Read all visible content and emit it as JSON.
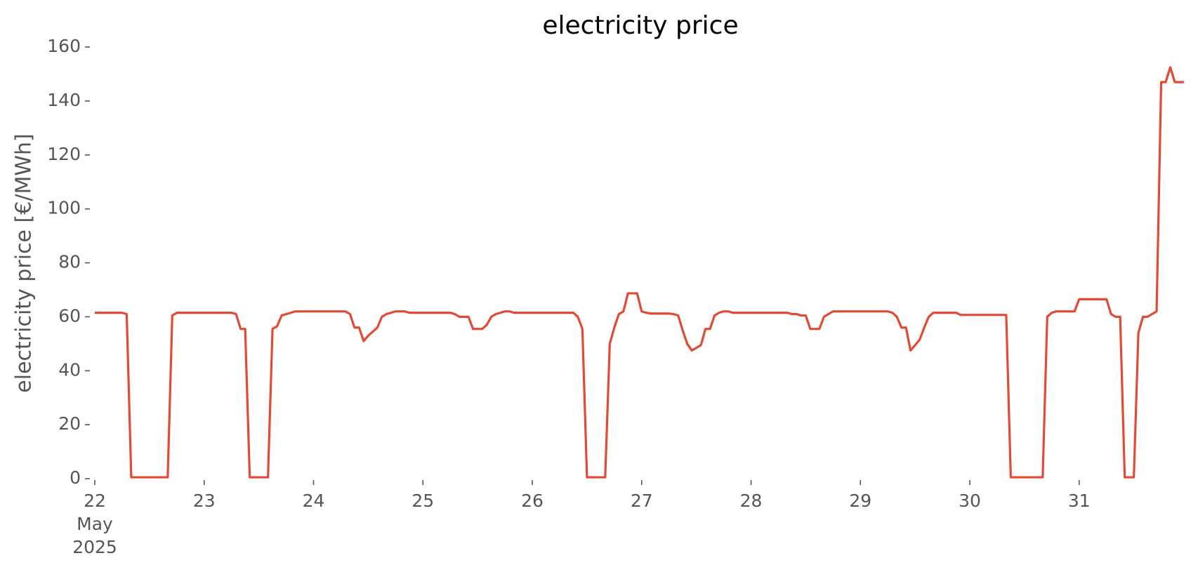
{
  "chart_data": {
    "type": "line",
    "title": "electricity price",
    "y_label": "electricity price [€/MWh]",
    "ylim": [
      0,
      160
    ],
    "yticks": [
      0,
      20,
      40,
      60,
      80,
      100,
      120,
      140,
      160
    ],
    "xlim": [
      "2025-05-22T00:00",
      "2025-05-31T23:00"
    ],
    "xticks": [
      {
        "value": "2025-05-22T00:00",
        "label": "22\nMay\n2025"
      },
      {
        "value": "2025-05-23T00:00",
        "label": "23"
      },
      {
        "value": "2025-05-24T00:00",
        "label": "24"
      },
      {
        "value": "2025-05-25T00:00",
        "label": "25"
      },
      {
        "value": "2025-05-26T00:00",
        "label": "26"
      },
      {
        "value": "2025-05-27T00:00",
        "label": "27"
      },
      {
        "value": "2025-05-28T00:00",
        "label": "28"
      },
      {
        "value": "2025-05-29T00:00",
        "label": "29"
      },
      {
        "value": "2025-05-30T00:00",
        "label": "30"
      },
      {
        "value": "2025-05-31T00:00",
        "label": "31"
      }
    ],
    "grid": false,
    "x": [
      "2025-05-22T00:00",
      "2025-05-22T01:00",
      "2025-05-22T02:00",
      "2025-05-22T03:00",
      "2025-05-22T04:00",
      "2025-05-22T05:00",
      "2025-05-22T06:00",
      "2025-05-22T07:00",
      "2025-05-22T08:00",
      "2025-05-22T09:00",
      "2025-05-22T10:00",
      "2025-05-22T11:00",
      "2025-05-22T12:00",
      "2025-05-22T13:00",
      "2025-05-22T14:00",
      "2025-05-22T15:00",
      "2025-05-22T16:00",
      "2025-05-22T17:00",
      "2025-05-22T18:00",
      "2025-05-22T19:00",
      "2025-05-22T20:00",
      "2025-05-22T21:00",
      "2025-05-22T22:00",
      "2025-05-22T23:00",
      "2025-05-23T00:00",
      "2025-05-23T01:00",
      "2025-05-23T02:00",
      "2025-05-23T03:00",
      "2025-05-23T04:00",
      "2025-05-23T05:00",
      "2025-05-23T06:00",
      "2025-05-23T07:00",
      "2025-05-23T08:00",
      "2025-05-23T09:00",
      "2025-05-23T10:00",
      "2025-05-23T11:00",
      "2025-05-23T12:00",
      "2025-05-23T13:00",
      "2025-05-23T14:00",
      "2025-05-23T15:00",
      "2025-05-23T16:00",
      "2025-05-23T17:00",
      "2025-05-23T18:00",
      "2025-05-23T19:00",
      "2025-05-23T20:00",
      "2025-05-23T21:00",
      "2025-05-23T22:00",
      "2025-05-23T23:00",
      "2025-05-24T00:00",
      "2025-05-24T01:00",
      "2025-05-24T02:00",
      "2025-05-24T03:00",
      "2025-05-24T04:00",
      "2025-05-24T05:00",
      "2025-05-24T06:00",
      "2025-05-24T07:00",
      "2025-05-24T08:00",
      "2025-05-24T09:00",
      "2025-05-24T10:00",
      "2025-05-24T11:00",
      "2025-05-24T12:00",
      "2025-05-24T13:00",
      "2025-05-24T14:00",
      "2025-05-24T15:00",
      "2025-05-24T16:00",
      "2025-05-24T17:00",
      "2025-05-24T18:00",
      "2025-05-24T19:00",
      "2025-05-24T20:00",
      "2025-05-24T21:00",
      "2025-05-24T22:00",
      "2025-05-24T23:00",
      "2025-05-25T00:00",
      "2025-05-25T01:00",
      "2025-05-25T02:00",
      "2025-05-25T03:00",
      "2025-05-25T04:00",
      "2025-05-25T05:00",
      "2025-05-25T06:00",
      "2025-05-25T07:00",
      "2025-05-25T08:00",
      "2025-05-25T09:00",
      "2025-05-25T10:00",
      "2025-05-25T11:00",
      "2025-05-25T12:00",
      "2025-05-25T13:00",
      "2025-05-25T14:00",
      "2025-05-25T15:00",
      "2025-05-25T16:00",
      "2025-05-25T17:00",
      "2025-05-25T18:00",
      "2025-05-25T19:00",
      "2025-05-25T20:00",
      "2025-05-25T21:00",
      "2025-05-25T22:00",
      "2025-05-25T23:00",
      "2025-05-26T00:00",
      "2025-05-26T01:00",
      "2025-05-26T02:00",
      "2025-05-26T03:00",
      "2025-05-26T04:00",
      "2025-05-26T05:00",
      "2025-05-26T06:00",
      "2025-05-26T07:00",
      "2025-05-26T08:00",
      "2025-05-26T09:00",
      "2025-05-26T10:00",
      "2025-05-26T11:00",
      "2025-05-26T12:00",
      "2025-05-26T13:00",
      "2025-05-26T14:00",
      "2025-05-26T15:00",
      "2025-05-26T16:00",
      "2025-05-26T17:00",
      "2025-05-26T18:00",
      "2025-05-26T19:00",
      "2025-05-26T20:00",
      "2025-05-26T21:00",
      "2025-05-26T22:00",
      "2025-05-26T23:00",
      "2025-05-27T00:00",
      "2025-05-27T01:00",
      "2025-05-27T02:00",
      "2025-05-27T03:00",
      "2025-05-27T04:00",
      "2025-05-27T05:00",
      "2025-05-27T06:00",
      "2025-05-27T07:00",
      "2025-05-27T08:00",
      "2025-05-27T09:00",
      "2025-05-27T10:00",
      "2025-05-27T11:00",
      "2025-05-27T12:00",
      "2025-05-27T13:00",
      "2025-05-27T14:00",
      "2025-05-27T15:00",
      "2025-05-27T16:00",
      "2025-05-27T17:00",
      "2025-05-27T18:00",
      "2025-05-27T19:00",
      "2025-05-27T20:00",
      "2025-05-27T21:00",
      "2025-05-27T22:00",
      "2025-05-27T23:00",
      "2025-05-28T00:00",
      "2025-05-28T01:00",
      "2025-05-28T02:00",
      "2025-05-28T03:00",
      "2025-05-28T04:00",
      "2025-05-28T05:00",
      "2025-05-28T06:00",
      "2025-05-28T07:00",
      "2025-05-28T08:00",
      "2025-05-28T09:00",
      "2025-05-28T10:00",
      "2025-05-28T11:00",
      "2025-05-28T12:00",
      "2025-05-28T13:00",
      "2025-05-28T14:00",
      "2025-05-28T15:00",
      "2025-05-28T16:00",
      "2025-05-28T17:00",
      "2025-05-28T18:00",
      "2025-05-28T19:00",
      "2025-05-28T20:00",
      "2025-05-28T21:00",
      "2025-05-28T22:00",
      "2025-05-28T23:00",
      "2025-05-29T00:00",
      "2025-05-29T01:00",
      "2025-05-29T02:00",
      "2025-05-29T03:00",
      "2025-05-29T04:00",
      "2025-05-29T05:00",
      "2025-05-29T06:00",
      "2025-05-29T07:00",
      "2025-05-29T08:00",
      "2025-05-29T09:00",
      "2025-05-29T10:00",
      "2025-05-29T11:00",
      "2025-05-29T12:00",
      "2025-05-29T13:00",
      "2025-05-29T14:00",
      "2025-05-29T15:00",
      "2025-05-29T16:00",
      "2025-05-29T17:00",
      "2025-05-29T18:00",
      "2025-05-29T19:00",
      "2025-05-29T20:00",
      "2025-05-29T21:00",
      "2025-05-29T22:00",
      "2025-05-29T23:00",
      "2025-05-30T00:00",
      "2025-05-30T01:00",
      "2025-05-30T02:00",
      "2025-05-30T03:00",
      "2025-05-30T04:00",
      "2025-05-30T05:00",
      "2025-05-30T06:00",
      "2025-05-30T07:00",
      "2025-05-30T08:00",
      "2025-05-30T09:00",
      "2025-05-30T10:00",
      "2025-05-30T11:00",
      "2025-05-30T12:00",
      "2025-05-30T13:00",
      "2025-05-30T14:00",
      "2025-05-30T15:00",
      "2025-05-30T16:00",
      "2025-05-30T17:00",
      "2025-05-30T18:00",
      "2025-05-30T19:00",
      "2025-05-30T20:00",
      "2025-05-30T21:00",
      "2025-05-30T22:00",
      "2025-05-30T23:00",
      "2025-05-31T00:00",
      "2025-05-31T01:00",
      "2025-05-31T02:00",
      "2025-05-31T03:00",
      "2025-05-31T04:00",
      "2025-05-31T05:00",
      "2025-05-31T06:00",
      "2025-05-31T07:00",
      "2025-05-31T08:00",
      "2025-05-31T09:00",
      "2025-05-31T10:00",
      "2025-05-31T11:00",
      "2025-05-31T12:00",
      "2025-05-31T13:00",
      "2025-05-31T14:00",
      "2025-05-31T15:00",
      "2025-05-31T16:00",
      "2025-05-31T17:00",
      "2025-05-31T18:00",
      "2025-05-31T19:00",
      "2025-05-31T20:00",
      "2025-05-31T21:00",
      "2025-05-31T22:00",
      "2025-05-31T23:00"
    ],
    "series": [
      {
        "name": "electricity price",
        "color": "#e24a33",
        "values": [
          61.5,
          61.5,
          61.5,
          61.5,
          61.5,
          61.5,
          61.5,
          61,
          0.5,
          0.5,
          0.5,
          0.5,
          0.5,
          0.5,
          0.5,
          0.5,
          0.5,
          60.5,
          61.5,
          61.5,
          61.5,
          61.5,
          61.5,
          61.5,
          61.5,
          61.5,
          61.5,
          61.5,
          61.5,
          61.5,
          61.5,
          61,
          55.5,
          55.5,
          0.5,
          0.5,
          0.5,
          0.5,
          0.5,
          55.5,
          56.5,
          60.5,
          61,
          61.5,
          62,
          62,
          62,
          62,
          62,
          62,
          62,
          62,
          62,
          62,
          62,
          62,
          61,
          56,
          56,
          51,
          53,
          54.5,
          56,
          60,
          61,
          61.5,
          62,
          62,
          62,
          61.5,
          61.5,
          61.5,
          61.5,
          61.5,
          61.5,
          61.5,
          61.5,
          61.5,
          61.5,
          61,
          60,
          60,
          60,
          55.5,
          55.5,
          55.5,
          57,
          60,
          61,
          61.5,
          62,
          62,
          61.5,
          61.5,
          61.5,
          61.5,
          61.5,
          61.5,
          61.5,
          61.5,
          61.5,
          61.5,
          61.5,
          61.5,
          61.5,
          61.5,
          60,
          55.5,
          0.5,
          0.5,
          0.5,
          0.5,
          0.5,
          50,
          56,
          61,
          62,
          68.7,
          68.7,
          68.7,
          62,
          61.5,
          61.2,
          61.2,
          61.2,
          61.2,
          61.2,
          61,
          60.5,
          55,
          50,
          47.5,
          48.5,
          49.5,
          55.5,
          55.5,
          60.5,
          61.5,
          62,
          62,
          61.5,
          61.5,
          61.5,
          61.5,
          61.5,
          61.5,
          61.5,
          61.5,
          61.5,
          61.5,
          61.5,
          61.5,
          61.5,
          61,
          61,
          60.5,
          60.5,
          55.5,
          55.5,
          55.5,
          60,
          61,
          62,
          62,
          62,
          62,
          62,
          62,
          62,
          62,
          62,
          62,
          62,
          62,
          62,
          61.5,
          60,
          56,
          56,
          47.5,
          49.5,
          51.5,
          56,
          60,
          61.5,
          61.5,
          61.5,
          61.5,
          61.5,
          61.5,
          60.7,
          60.7,
          60.7,
          60.7,
          60.7,
          60.7,
          60.7,
          60.7,
          60.7,
          60.7,
          60.7,
          0.5,
          0.5,
          0.5,
          0.5,
          0.5,
          0.5,
          0.5,
          0.5,
          60,
          61.5,
          62,
          62,
          62,
          62,
          62,
          66.5,
          66.5,
          66.5,
          66.5,
          66.5,
          66.5,
          66.5,
          61,
          60,
          60,
          0.5,
          0.5,
          0.5,
          54,
          60,
          60,
          61,
          62,
          147,
          147,
          152.5,
          147,
          147,
          147
        ]
      }
    ]
  }
}
